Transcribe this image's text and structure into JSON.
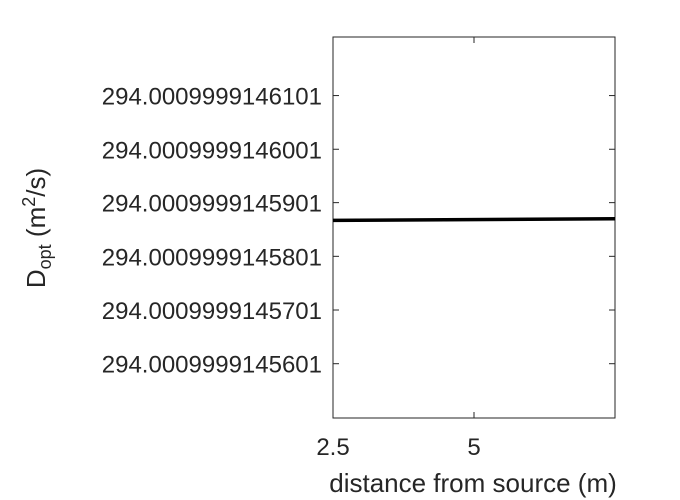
{
  "chart_data": {
    "type": "line",
    "title": "",
    "xlabel": "distance from source (m)",
    "ylabel": {
      "main": "D",
      "subscript": "opt",
      "units_prefix": " (m",
      "units_superscript": "2",
      "units_suffix": "/s)"
    },
    "xlim": [
      2.5,
      7.5
    ],
    "ylim": [
      294.00099991455,
      294.000999914621
    ],
    "x_ticks": [
      {
        "value": 2.5,
        "label": "2.5"
      },
      {
        "value": 5,
        "label": "5"
      }
    ],
    "y_ticks": [
      {
        "value": 294.0009999145601,
        "label": "294.0009999145601"
      },
      {
        "value": 294.0009999145701,
        "label": "294.0009999145701"
      },
      {
        "value": 294.0009999145801,
        "label": "294.0009999145801"
      },
      {
        "value": 294.0009999145901,
        "label": "294.0009999145901"
      },
      {
        "value": 294.0009999146001,
        "label": "294.0009999146001"
      },
      {
        "value": 294.0009999146101,
        "label": "294.0009999146101"
      }
    ],
    "series": [
      {
        "color": "#000000",
        "x": [
          2.5,
          7.5
        ],
        "y": [
          294.0009999145868,
          294.0009999145871
        ]
      }
    ],
    "grid": false,
    "legend": "none",
    "box": true
  }
}
